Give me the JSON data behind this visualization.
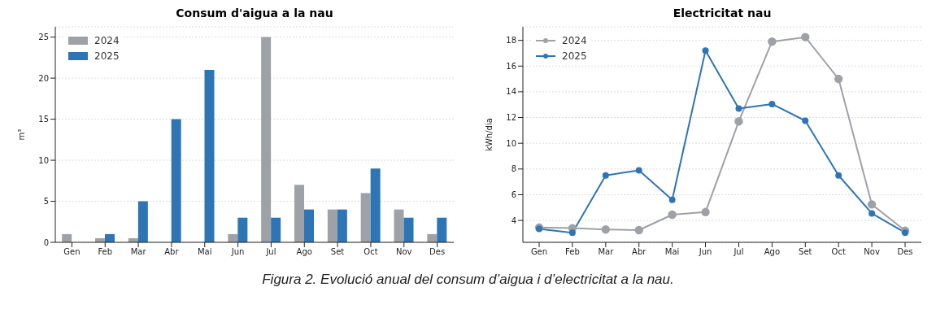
{
  "chart_data": [
    {
      "type": "bar",
      "title": "Consum d'aigua a la nau",
      "ylabel": "m³",
      "categories": [
        "Gen",
        "Feb",
        "Mar",
        "Abr",
        "Mai",
        "Jun",
        "Jul",
        "Ago",
        "Set",
        "Oct",
        "Nov",
        "Des"
      ],
      "series": [
        {
          "name": "2024",
          "color": "#9ea1a6",
          "values": [
            1,
            0.5,
            0.5,
            0,
            0,
            1,
            25,
            7,
            4,
            6,
            4,
            1
          ]
        },
        {
          "name": "2025",
          "color": "#2e75b6",
          "values": [
            0,
            1,
            5,
            15,
            21,
            3,
            3,
            4,
            4,
            9,
            3,
            3
          ]
        }
      ],
      "ylim": [
        0,
        26.25
      ],
      "yticks": [
        0,
        5,
        10,
        15,
        20,
        25
      ],
      "grid": "y",
      "legend": "top left",
      "annotations": [
        "Figura 2. Evolució anual del consum d’aigua i d’electricitat a la nau."
      ]
    },
    {
      "type": "line",
      "title": "Electricitat nau",
      "ylabel": "kWh/dia",
      "categories": [
        "Gen",
        "Feb",
        "Mar",
        "Abr",
        "Mai",
        "Jun",
        "Jul",
        "Ago",
        "Set",
        "Oct",
        "Nov",
        "Des"
      ],
      "series": [
        {
          "name": "2024",
          "color": "#9ea1a6",
          "values": [
            3.45,
            3.4,
            3.3,
            3.25,
            4.45,
            4.65,
            11.7,
            17.9,
            18.25,
            15.0,
            5.25,
            3.2
          ]
        },
        {
          "name": "2025",
          "color": "#2e75b6",
          "values": [
            3.35,
            3.05,
            7.5,
            7.9,
            5.6,
            17.2,
            12.7,
            13.05,
            11.75,
            7.5,
            4.55,
            3.05
          ]
        }
      ],
      "ylim": [
        2.3,
        19.05
      ],
      "yticks": [
        4,
        6,
        8,
        10,
        12,
        14,
        16,
        18
      ],
      "grid": "y",
      "legend": "top left",
      "marker": "circle",
      "line_style": "solid"
    }
  ]
}
